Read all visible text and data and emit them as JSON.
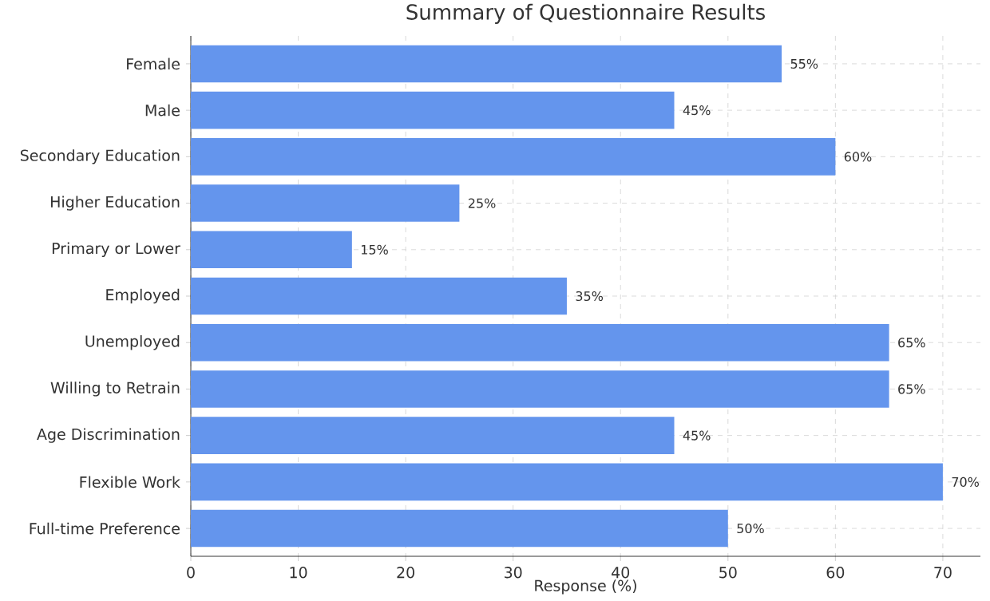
{
  "chart_data": {
    "type": "bar",
    "orientation": "horizontal",
    "title": "Summary of Questionnaire Results",
    "xlabel": "Response (%)",
    "categories": [
      "Female",
      "Male",
      "Secondary Education",
      "Higher Education",
      "Primary or Lower",
      "Employed",
      "Unemployed",
      "Willing to Retrain",
      "Age Discrimination",
      "Flexible Work",
      "Full-time Preference"
    ],
    "values": [
      55,
      45,
      60,
      25,
      15,
      35,
      65,
      65,
      45,
      70,
      50
    ],
    "value_labels": [
      "55%",
      "45%",
      "60%",
      "25%",
      "15%",
      "35%",
      "65%",
      "65%",
      "45%",
      "70%",
      "50%"
    ],
    "color": "#6495ed",
    "xlim": [
      0,
      73.5
    ],
    "xticks": [
      0,
      10,
      20,
      30,
      40,
      50,
      60,
      70
    ],
    "grid": true
  }
}
